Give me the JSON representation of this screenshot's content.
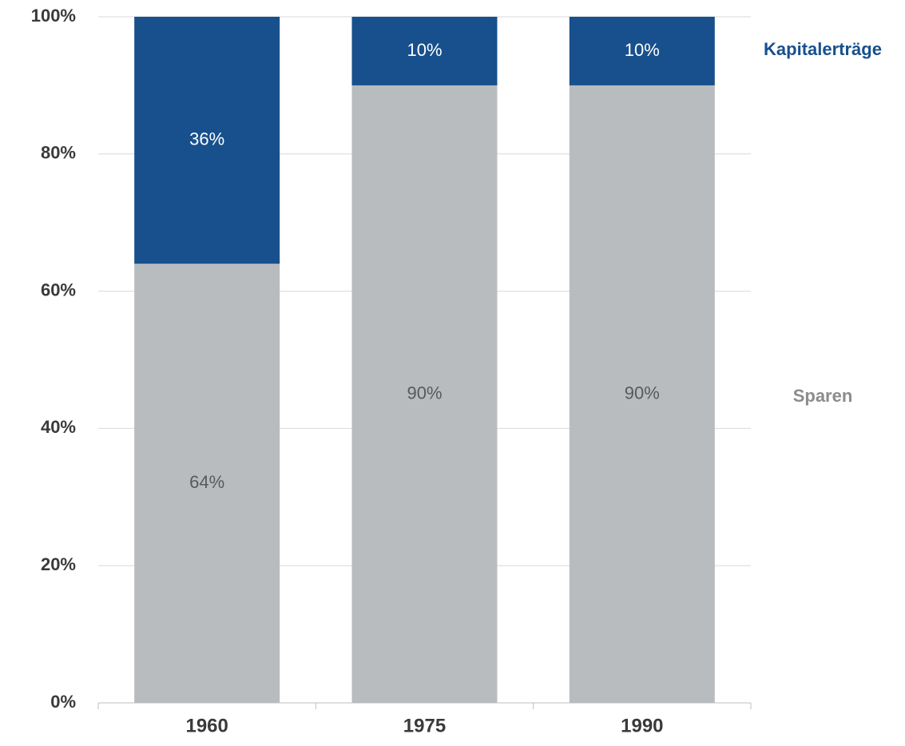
{
  "chart_data": {
    "type": "stacked_bar",
    "categories": [
      "1960",
      "1975",
      "1990"
    ],
    "series": [
      {
        "name": "Sparen",
        "color": "#b8bcbf",
        "values": [
          64,
          90,
          90
        ],
        "value_labels": [
          "64%",
          "90%",
          "90%"
        ]
      },
      {
        "name": "Kapitalerträge",
        "color": "#17508d",
        "values": [
          36,
          10,
          10
        ],
        "value_labels": [
          "36%",
          "10%",
          "10%"
        ]
      }
    ],
    "ylim": [
      0,
      100
    ],
    "yticks": [
      {
        "value": 0,
        "label": "0%"
      },
      {
        "value": 20,
        "label": "20%"
      },
      {
        "value": 40,
        "label": "40%"
      },
      {
        "value": 60,
        "label": "60%"
      },
      {
        "value": 80,
        "label": "80%"
      },
      {
        "value": 100,
        "label": "100%"
      }
    ],
    "grid": true,
    "legend": "right"
  }
}
